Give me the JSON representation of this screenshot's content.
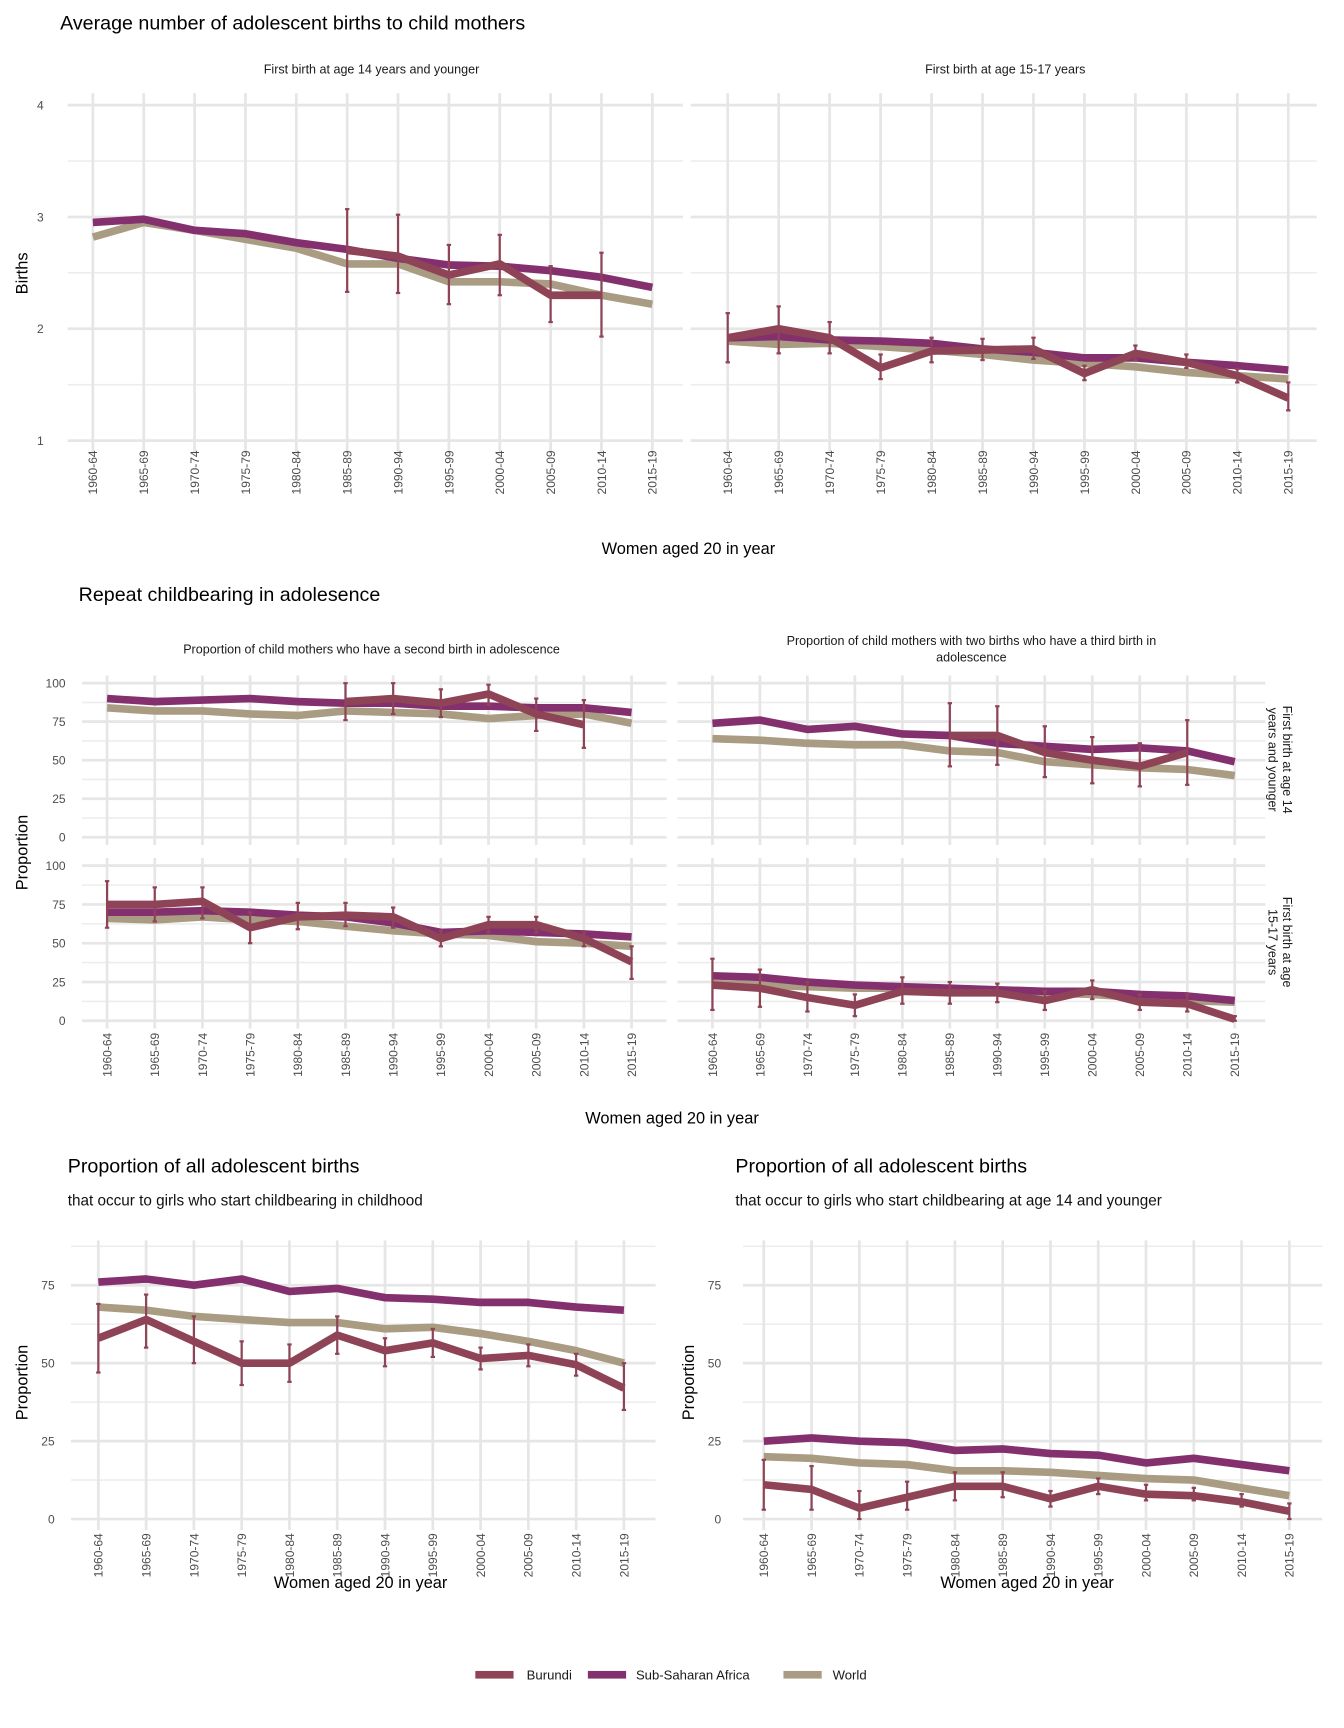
{
  "titles": {
    "s1": "Average number of adolescent births to child mothers",
    "s2": "Repeat childbearing in adolesence",
    "s3l": "Proportion of all adolescent births",
    "s3l_sub": "that occur to girls who start childbearing in childhood",
    "s3r": "Proportion of all adolescent births",
    "s3r_sub": "that occur to girls who start childbearing at age 14 and younger"
  },
  "strips": {
    "s1a": "First birth at age 14 years and younger",
    "s1b": "First birth at age 15-17 years",
    "s2a": "Proportion of child mothers who have a second birth in adolescence",
    "s2b_1": "Proportion of child mothers with two births who have a third birth in",
    "s2b_2": "adolescence",
    "row1_1": "First birth at age 14",
    "row1_2": "years and younger",
    "row2_1": "First birth at age",
    "row2_2": "15-17 years"
  },
  "axis": {
    "births": "Births",
    "proportion": "Proportion",
    "women": "Women aged 20 in year"
  },
  "legend": [
    {
      "name": "Burundi",
      "color": "#8e4456"
    },
    {
      "name": "Sub-Saharan Africa",
      "color": "#84306f"
    },
    {
      "name": "World",
      "color": "#a99c83"
    }
  ],
  "chart_data": [
    {
      "type": "line",
      "yticks": [
        1,
        2,
        3,
        4
      ],
      "categories": [
        "1960-64",
        "1965-69",
        "1970-74",
        "1975-79",
        "1980-84",
        "1985-89",
        "1990-94",
        "1995-99",
        "2000-04",
        "2005-09",
        "2010-14",
        "2015-19"
      ],
      "series": [
        {
          "name": "World",
          "values": [
            2.82,
            2.95,
            2.88,
            2.8,
            2.72,
            2.58,
            2.58,
            2.42,
            2.42,
            2.4,
            2.3,
            2.22
          ]
        },
        {
          "name": "Sub-Saharan Africa",
          "values": [
            2.95,
            2.98,
            2.88,
            2.85,
            2.77,
            2.71,
            2.63,
            2.57,
            2.56,
            2.52,
            2.46,
            2.37
          ]
        },
        {
          "name": "Burundi",
          "values": [
            null,
            null,
            null,
            null,
            null,
            2.7,
            2.65,
            2.48,
            2.58,
            2.3,
            2.3,
            null
          ],
          "ci_low": [
            null,
            null,
            null,
            null,
            null,
            2.33,
            2.32,
            2.22,
            2.3,
            2.06,
            1.93,
            null
          ],
          "ci_high": [
            null,
            null,
            null,
            null,
            null,
            3.07,
            3.02,
            2.75,
            2.84,
            2.56,
            2.68,
            null
          ]
        }
      ]
    },
    {
      "type": "line",
      "yticks": [
        1,
        2,
        3,
        4
      ],
      "categories": [
        "1960-64",
        "1965-69",
        "1970-74",
        "1975-79",
        "1980-84",
        "1985-89",
        "1990-94",
        "1995-99",
        "2000-04",
        "2005-09",
        "2010-14",
        "2015-19"
      ],
      "series": [
        {
          "name": "World",
          "values": [
            1.89,
            1.86,
            1.87,
            1.84,
            1.81,
            1.77,
            1.72,
            1.69,
            1.66,
            1.61,
            1.58,
            1.55
          ]
        },
        {
          "name": "Sub-Saharan Africa",
          "values": [
            1.92,
            1.93,
            1.9,
            1.89,
            1.87,
            1.82,
            1.79,
            1.74,
            1.74,
            1.7,
            1.67,
            1.63
          ]
        },
        {
          "name": "Burundi",
          "values": [
            1.92,
            2.0,
            1.92,
            1.65,
            1.8,
            1.81,
            1.82,
            1.6,
            1.78,
            1.7,
            1.58,
            1.38
          ],
          "ci_low": [
            1.7,
            1.78,
            1.78,
            1.55,
            1.7,
            1.72,
            1.73,
            1.54,
            1.72,
            1.65,
            1.52,
            1.27
          ],
          "ci_high": [
            2.14,
            2.2,
            2.06,
            1.77,
            1.92,
            1.91,
            1.92,
            1.67,
            1.85,
            1.77,
            1.64,
            1.52
          ]
        }
      ]
    },
    {
      "type": "line",
      "yticks": [
        0,
        25,
        50,
        75,
        100
      ],
      "categories": [
        "1960-64",
        "1965-69",
        "1970-74",
        "1975-79",
        "1980-84",
        "1985-89",
        "1990-94",
        "1995-99",
        "2000-04",
        "2005-09",
        "2010-14",
        "2015-19"
      ],
      "series": [
        {
          "name": "World",
          "values": [
            84,
            82,
            82,
            80,
            79,
            82,
            81,
            80,
            77,
            79,
            80,
            74
          ]
        },
        {
          "name": "Sub-Saharan Africa",
          "values": [
            90,
            88,
            89,
            90,
            88,
            87,
            87,
            85,
            85,
            84,
            84,
            81
          ]
        },
        {
          "name": "Burundi",
          "values": [
            null,
            null,
            null,
            null,
            null,
            88,
            90,
            87,
            93,
            80,
            73,
            null
          ],
          "ci_low": [
            null,
            null,
            null,
            null,
            null,
            76,
            80,
            78,
            86,
            69,
            58,
            null
          ],
          "ci_high": [
            null,
            null,
            null,
            null,
            null,
            100,
            100,
            96,
            99,
            90,
            89,
            null
          ]
        }
      ]
    },
    {
      "type": "line",
      "yticks": [
        0,
        25,
        50,
        75,
        100
      ],
      "categories": [
        "1960-64",
        "1965-69",
        "1970-74",
        "1975-79",
        "1980-84",
        "1985-89",
        "1990-94",
        "1995-99",
        "2000-04",
        "2005-09",
        "2010-14",
        "2015-19"
      ],
      "series": [
        {
          "name": "World",
          "values": [
            64,
            63,
            61,
            60,
            60,
            56,
            55,
            49,
            47,
            45,
            44,
            40
          ]
        },
        {
          "name": "Sub-Saharan Africa",
          "values": [
            74,
            76,
            70,
            72,
            67,
            66,
            61,
            59,
            57,
            58,
            56,
            49
          ]
        },
        {
          "name": "Burundi",
          "values": [
            null,
            null,
            null,
            null,
            null,
            66,
            66,
            55,
            50,
            46,
            55,
            null
          ],
          "ci_low": [
            null,
            null,
            null,
            null,
            null,
            46,
            47,
            39,
            35,
            33,
            34,
            null
          ],
          "ci_high": [
            null,
            null,
            null,
            null,
            null,
            87,
            85,
            72,
            65,
            61,
            76,
            null
          ]
        }
      ]
    },
    {
      "type": "line",
      "yticks": [
        0,
        25,
        50,
        75,
        100
      ],
      "categories": [
        "1960-64",
        "1965-69",
        "1970-74",
        "1975-79",
        "1980-84",
        "1985-89",
        "1990-94",
        "1995-99",
        "2000-04",
        "2005-09",
        "2010-14",
        "2015-19"
      ],
      "series": [
        {
          "name": "World",
          "values": [
            66,
            65,
            67,
            65,
            64,
            61,
            58,
            56,
            55,
            51,
            50,
            48
          ]
        },
        {
          "name": "Sub-Saharan Africa",
          "values": [
            70,
            70,
            71,
            70,
            68,
            67,
            63,
            57,
            58,
            57,
            56,
            54
          ]
        },
        {
          "name": "Burundi",
          "values": [
            75,
            75,
            77,
            60,
            67,
            68,
            67,
            53,
            62,
            62,
            53,
            38
          ],
          "ci_low": [
            60,
            64,
            66,
            50,
            59,
            61,
            60,
            48,
            57,
            57,
            48,
            27
          ],
          "ci_high": [
            90,
            86,
            86,
            70,
            76,
            76,
            73,
            58,
            67,
            67,
            57,
            48
          ]
        }
      ]
    },
    {
      "type": "line",
      "yticks": [
        0,
        25,
        50,
        75,
        100
      ],
      "categories": [
        "1960-64",
        "1965-69",
        "1970-74",
        "1975-79",
        "1980-84",
        "1985-89",
        "1990-94",
        "1995-99",
        "2000-04",
        "2005-09",
        "2010-14",
        "2015-19"
      ],
      "series": [
        {
          "name": "World",
          "values": [
            24,
            23,
            22,
            21,
            21,
            20,
            19,
            18,
            17,
            15,
            13,
            12
          ]
        },
        {
          "name": "Sub-Saharan Africa",
          "values": [
            29,
            28,
            25,
            23,
            22,
            21,
            20,
            19,
            19,
            17,
            16,
            13
          ]
        },
        {
          "name": "Burundi",
          "values": [
            23,
            21,
            15,
            10,
            19,
            18,
            18,
            13,
            20,
            12,
            11,
            1
          ],
          "ci_low": [
            7,
            9,
            6,
            3,
            11,
            11,
            12,
            7,
            14,
            7,
            6,
            0
          ],
          "ci_high": [
            40,
            33,
            25,
            17,
            28,
            25,
            24,
            19,
            26,
            17,
            17,
            3
          ]
        }
      ]
    },
    {
      "type": "line",
      "yticks": [
        0,
        25,
        50,
        75
      ],
      "categories": [
        "1960-64",
        "1965-69",
        "1970-74",
        "1975-79",
        "1980-84",
        "1985-89",
        "1990-94",
        "1995-99",
        "2000-04",
        "2005-09",
        "2010-14",
        "2015-19"
      ],
      "series": [
        {
          "name": "World",
          "values": [
            68,
            67,
            65,
            64,
            63,
            63,
            61,
            61.5,
            59.5,
            57,
            54,
            50
          ]
        },
        {
          "name": "Sub-Saharan Africa",
          "values": [
            76,
            77,
            75,
            77,
            73,
            74,
            71,
            70.5,
            69.5,
            69.5,
            68,
            67
          ]
        },
        {
          "name": "Burundi",
          "values": [
            58,
            64,
            57,
            50,
            50,
            59,
            54,
            56.5,
            51.5,
            52.5,
            49.5,
            42
          ],
          "ci_low": [
            47,
            55,
            50,
            43,
            44,
            53,
            49,
            52,
            48,
            49,
            46,
            35
          ],
          "ci_high": [
            69,
            72,
            65,
            57,
            56,
            65,
            58,
            61,
            55,
            56,
            53,
            50
          ]
        }
      ]
    },
    {
      "type": "line",
      "yticks": [
        0,
        25,
        50,
        75
      ],
      "categories": [
        "1960-64",
        "1965-69",
        "1970-74",
        "1975-79",
        "1980-84",
        "1985-89",
        "1990-94",
        "1995-99",
        "2000-04",
        "2005-09",
        "2010-14",
        "2015-19"
      ],
      "series": [
        {
          "name": "World",
          "values": [
            20,
            19.5,
            18,
            17.5,
            15.5,
            15.5,
            15,
            14,
            13,
            12.5,
            10,
            7.5
          ]
        },
        {
          "name": "Sub-Saharan Africa",
          "values": [
            25,
            26,
            25,
            24.5,
            22,
            22.5,
            21,
            20.5,
            18,
            19.5,
            17.5,
            15.5
          ]
        },
        {
          "name": "Burundi",
          "values": [
            11,
            9.5,
            3.5,
            7,
            10.5,
            10.5,
            6.5,
            10.5,
            8,
            7.5,
            5.5,
            2.5
          ],
          "ci_low": [
            3,
            3,
            0,
            3,
            6,
            7,
            4,
            8,
            6,
            6,
            4,
            0
          ],
          "ci_high": [
            19,
            17,
            9,
            12,
            15,
            15,
            9,
            13,
            11,
            10,
            8,
            5
          ]
        }
      ]
    }
  ]
}
